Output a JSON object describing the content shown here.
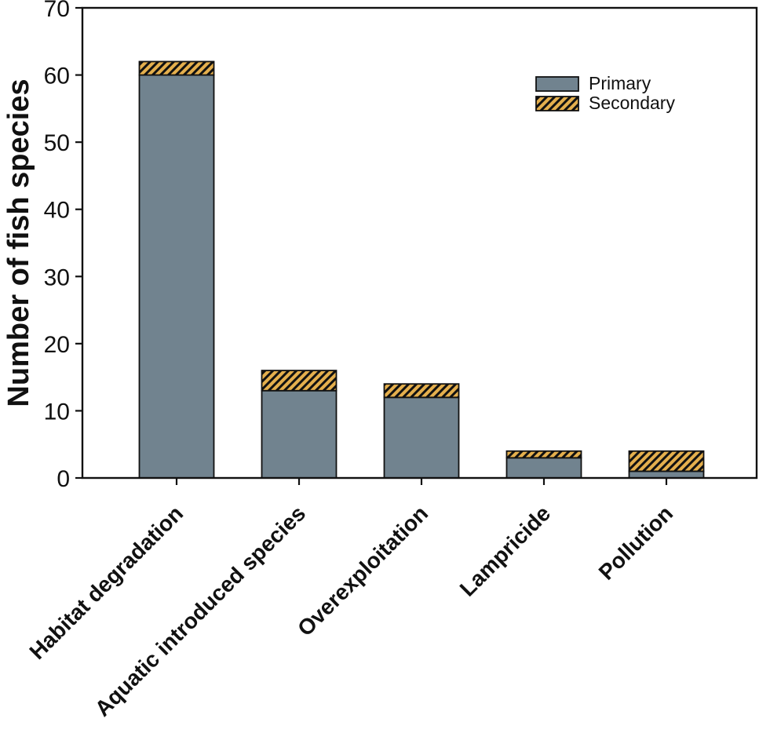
{
  "chart_data": {
    "type": "bar",
    "stacked": true,
    "title": "",
    "xlabel": "",
    "ylabel": "Number of fish species",
    "ylim": [
      0,
      70
    ],
    "yticks": [
      0,
      10,
      20,
      30,
      40,
      50,
      60,
      70
    ],
    "categories": [
      "Habitat degradation",
      "Aquatic introduced species",
      "Overexploitation",
      "Lampricide",
      "Pollution"
    ],
    "series": [
      {
        "name": "Primary",
        "style": "solid",
        "color": "#71838F",
        "values": [
          60,
          13,
          12,
          3,
          1
        ]
      },
      {
        "name": "Secondary",
        "style": "diagonal-hatch",
        "color": "#E4AF4D",
        "hatch_color": "#111111",
        "values": [
          2,
          3,
          2,
          1,
          3
        ]
      }
    ],
    "totals": [
      62,
      16,
      14,
      4,
      4
    ],
    "legend": {
      "position": "upper-right",
      "entries": [
        "Primary",
        "Secondary"
      ]
    },
    "grid": false,
    "axis_color": "#111111",
    "bar_edge_color": "#111111",
    "background_color": "#ffffff"
  }
}
